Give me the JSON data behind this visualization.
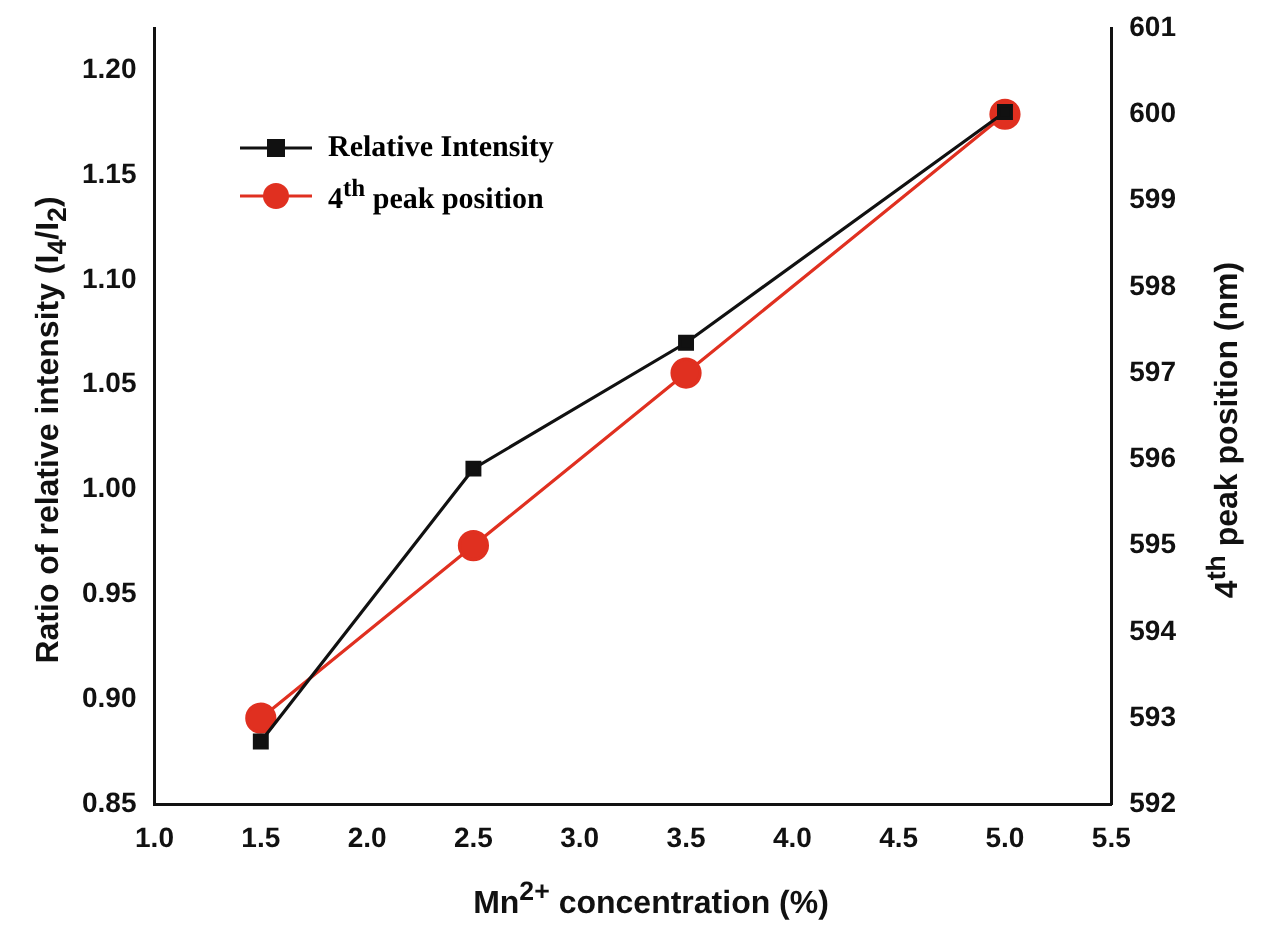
{
  "chart_data": {
    "type": "line",
    "xlabel": "Mn$^{2+}$ concentration (%)",
    "ylabel": "Ratio of relative intensity (I$_{4}$/I$_{2}$)",
    "y2label": "4$^{th}$ peak position (nm)",
    "x": [
      1.5,
      2.5,
      3.5,
      5.0
    ],
    "xlim": [
      1.0,
      5.5
    ],
    "xticks": [
      {
        "value": 1,
        "label": "1.0"
      },
      1.5,
      {
        "value": 2,
        "label": "2.0"
      },
      2.5,
      {
        "value": 3,
        "label": "3.0"
      },
      3.5,
      {
        "value": 4,
        "label": "4.0"
      },
      4.5,
      {
        "value": 5,
        "label": "5.0"
      },
      5.5
    ],
    "ylim": [
      0.85,
      1.22
    ],
    "yticks": [
      0.85,
      {
        "value": 0.9,
        "label": "0.90"
      },
      0.95,
      {
        "value": 1.0,
        "label": "1.00"
      },
      1.05,
      {
        "value": 1.1,
        "label": "1.10"
      },
      1.15,
      {
        "value": 1.2,
        "label": "1.20"
      }
    ],
    "y2lim": [
      592,
      601
    ],
    "y2ticks": [
      592,
      593,
      594,
      595,
      596,
      597,
      598,
      599,
      600,
      601
    ],
    "grid": false,
    "legend": "top left",
    "series": [
      {
        "name": "Relative Intensity",
        "color": "#111111",
        "marker": "square",
        "values": [
          0.88,
          1.01,
          1.07,
          1.18
        ]
      },
      {
        "name": "4$^{th}$ peak position",
        "color": "#e03020",
        "marker": "circle",
        "axis": "y2",
        "values": [
          593,
          595,
          597,
          600
        ]
      }
    ]
  }
}
